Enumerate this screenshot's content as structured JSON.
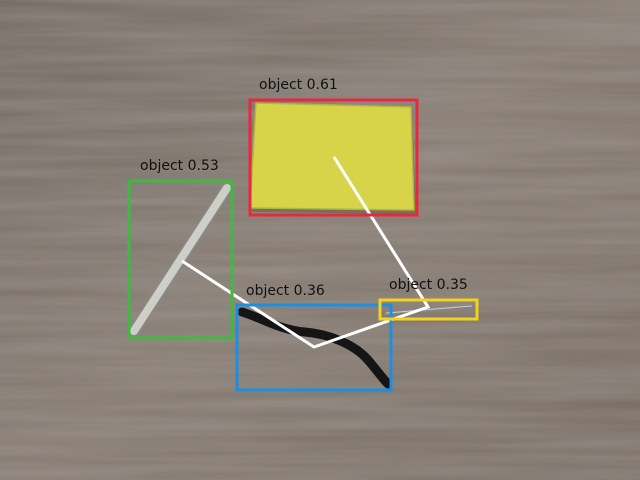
{
  "detections": [
    {
      "id": "sponge",
      "label": "object 0.61",
      "color": "#e8283e",
      "object_icon": "sponge-icon"
    },
    {
      "id": "stick",
      "label": "object 0.53",
      "color": "#3fba3f",
      "object_icon": "stick-icon"
    },
    {
      "id": "cable",
      "label": "object 0.36",
      "color": "#1e8fe0",
      "object_icon": "cable-icon"
    },
    {
      "id": "wire",
      "label": "object 0.35",
      "color": "#f2d21a",
      "object_icon": "wire-icon"
    }
  ],
  "colors": {
    "table_wood": "#7b7168",
    "sponge": "#d8d44a",
    "stick": "#c8c8c2",
    "cable": "#171717",
    "path_line": "#ffffff"
  }
}
